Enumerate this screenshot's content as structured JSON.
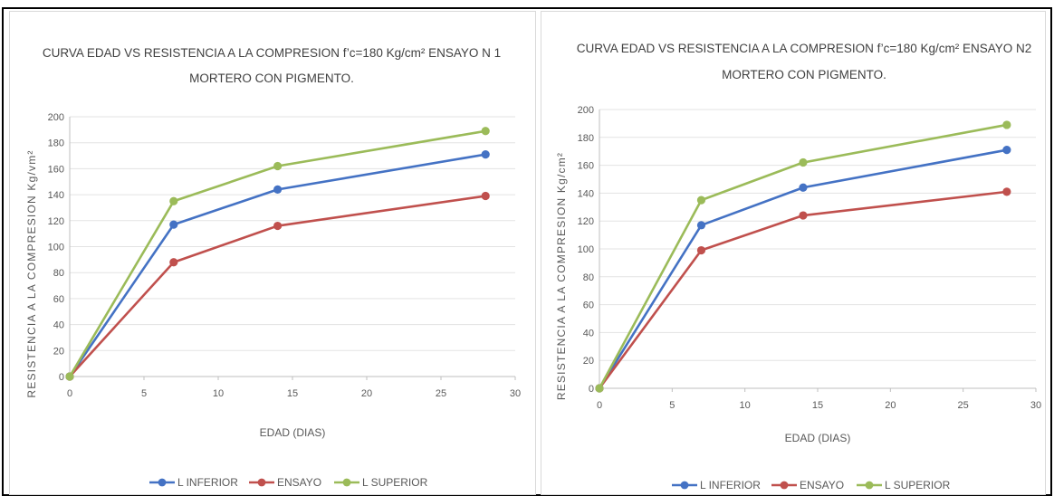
{
  "chart_data": [
    {
      "type": "line",
      "title": [
        "CURVA EDAD VS RESISTENCIA A LA COMPRESION f’c=180 Kg/cm² ENSAYO N 1",
        "MORTERO CON PIGMENTO."
      ],
      "xlabel": "EDAD (DIAS)",
      "ylabel": "RESISTENCIA A LA COMPRESION Kg/vm²",
      "xlim": [
        0,
        30
      ],
      "ylim": [
        0,
        200
      ],
      "xticks": [
        0,
        5,
        10,
        15,
        20,
        25,
        30
      ],
      "yticks": [
        0,
        20,
        40,
        60,
        80,
        100,
        120,
        140,
        160,
        180,
        200
      ],
      "grid": true,
      "legend": "bottom",
      "x": [
        0,
        7,
        14,
        28
      ],
      "series": [
        {
          "name": "L INFERIOR",
          "color": "#4472C4",
          "values": [
            0,
            117,
            144,
            171
          ]
        },
        {
          "name": "ENSAYO",
          "color": "#C0504D",
          "values": [
            0,
            88,
            116,
            139
          ]
        },
        {
          "name": "L SUPERIOR",
          "color": "#9BBB59",
          "values": [
            0,
            135,
            162,
            189
          ]
        }
      ]
    },
    {
      "type": "line",
      "title": [
        "CURVA EDAD VS RESISTENCIA A LA COMPRESION f’c=180 Kg/cm² ENSAYO N2",
        "MORTERO CON PIGMENTO."
      ],
      "xlabel": "EDAD (DIAS)",
      "ylabel": "RESISTENCIA A LA COMPRESION Kg/cm²",
      "xlim": [
        0,
        30
      ],
      "ylim": [
        0,
        200
      ],
      "xticks": [
        0,
        5,
        10,
        15,
        20,
        25,
        30
      ],
      "yticks": [
        0,
        20,
        40,
        60,
        80,
        100,
        120,
        140,
        160,
        180,
        200
      ],
      "grid": true,
      "legend": "bottom",
      "x": [
        0,
        7,
        14,
        28
      ],
      "series": [
        {
          "name": "L INFERIOR",
          "color": "#4472C4",
          "values": [
            0,
            117,
            144,
            171
          ]
        },
        {
          "name": "ENSAYO",
          "color": "#C0504D",
          "values": [
            0,
            99,
            124,
            141
          ]
        },
        {
          "name": "L SUPERIOR",
          "color": "#9BBB59",
          "values": [
            0,
            135,
            162,
            189
          ]
        }
      ]
    }
  ]
}
